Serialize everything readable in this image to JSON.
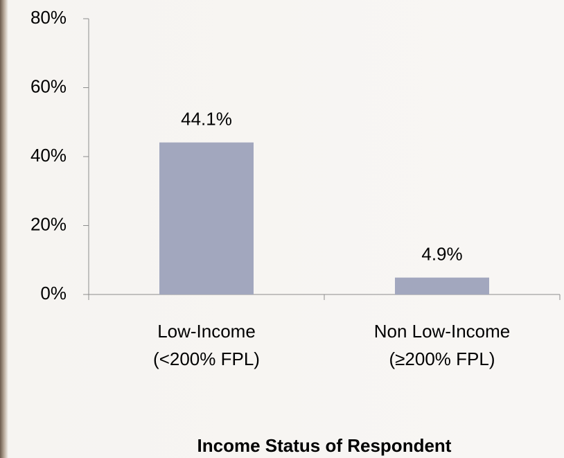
{
  "chart_data": {
    "type": "bar",
    "x_axis_label": "Income Status of Respondent",
    "categories": [
      "Low-Income\n(<200% FPL)",
      "Non Low-Income\n(≥200% FPL)"
    ],
    "values": [
      44.1,
      4.9
    ],
    "value_labels": [
      "44.1%",
      "4.9%"
    ],
    "color": "#a2a7be",
    "ylim": [
      0,
      80
    ],
    "yticks": [
      {
        "value": 0,
        "label": "0%"
      },
      {
        "value": 20,
        "label": "20%"
      },
      {
        "value": 40,
        "label": "40%"
      },
      {
        "value": 60,
        "label": "60%"
      },
      {
        "value": 80,
        "label": "80%"
      }
    ],
    "grid": false
  }
}
